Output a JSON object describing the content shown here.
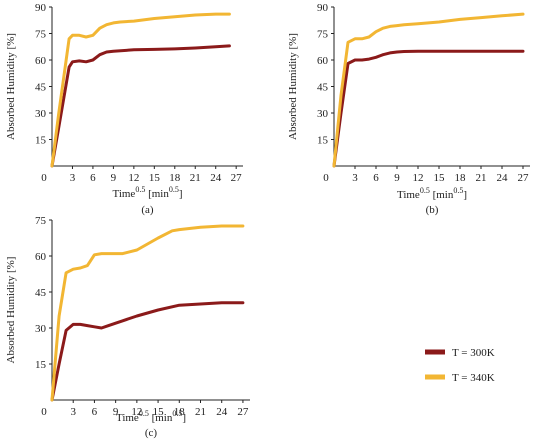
{
  "chart_data": [
    {
      "panel": "(a)",
      "type": "line",
      "xlabel": "Time",
      "xlabel_sup": "0.5",
      "xlabel_unit": "[min",
      "xlabel_unit_sup": "0.5",
      "xlabel_close": "]",
      "ylabel": "Absorbed Humidity [%]",
      "xlim": [
        0,
        28
      ],
      "ylim": [
        0,
        90
      ],
      "xticks": [
        0,
        3,
        6,
        9,
        12,
        15,
        18,
        21,
        24,
        27
      ],
      "yticks": [
        15,
        30,
        45,
        60,
        75,
        90
      ],
      "series": [
        {
          "name": "T = 300K",
          "color": "#8b1a1a",
          "x": [
            0,
            1,
            2.5,
            3,
            4,
            5,
            6,
            7,
            8,
            9,
            12,
            15,
            18,
            21,
            24,
            26
          ],
          "y": [
            0,
            22,
            56,
            59,
            59.5,
            59,
            60,
            63,
            64.5,
            65,
            65.8,
            66,
            66.3,
            66.8,
            67.5,
            68
          ]
        },
        {
          "name": "T = 340K",
          "color": "#f2b633",
          "x": [
            0,
            1,
            2.5,
            3,
            4,
            5,
            6,
            7,
            8,
            9,
            10,
            12,
            15,
            18,
            21,
            24,
            26
          ],
          "y": [
            0,
            30,
            72,
            74,
            74,
            73,
            74,
            78,
            80,
            81,
            81.5,
            82,
            83.5,
            84.5,
            85.5,
            86,
            86
          ]
        }
      ]
    },
    {
      "panel": "(b)",
      "type": "line",
      "xlabel": "Time",
      "xlabel_sup": "0.5",
      "xlabel_unit": "[min",
      "xlabel_unit_sup": "0.5",
      "xlabel_close": "]",
      "ylabel": "Absorbed Humidity [%]",
      "xlim": [
        0,
        28
      ],
      "ylim": [
        0,
        90
      ],
      "xticks": [
        0,
        3,
        6,
        9,
        12,
        15,
        18,
        21,
        24,
        27
      ],
      "yticks": [
        15,
        30,
        45,
        60,
        75,
        90
      ],
      "series": [
        {
          "name": "T = 300K",
          "color": "#8b1a1a",
          "x": [
            0,
            1,
            2,
            3,
            4,
            5,
            6,
            7,
            8,
            9,
            10,
            12,
            15,
            18,
            21,
            24,
            27
          ],
          "y": [
            0,
            30,
            58,
            60,
            60,
            60.5,
            61.5,
            63,
            64,
            64.5,
            64.8,
            65,
            65,
            65,
            65,
            65,
            65
          ]
        },
        {
          "name": "T = 340K",
          "color": "#f2b633",
          "x": [
            0,
            1,
            2,
            3,
            4,
            5,
            6,
            7,
            8,
            9,
            10,
            12,
            15,
            18,
            21,
            24,
            27
          ],
          "y": [
            0,
            40,
            70,
            72,
            72,
            73,
            76,
            78,
            79,
            79.5,
            80,
            80.5,
            81.5,
            83,
            84,
            85,
            86
          ]
        }
      ]
    },
    {
      "panel": "(c)",
      "type": "line",
      "xlabel": "Time",
      "xlabel_sup": "0.5",
      "xlabel_unit": "[min",
      "xlabel_unit_sup": "0.5",
      "xlabel_close": "]",
      "ylabel": "Absorbed Humidity [%]",
      "xlim": [
        0,
        28
      ],
      "ylim": [
        0,
        75
      ],
      "xticks": [
        0,
        3,
        6,
        9,
        12,
        15,
        18,
        21,
        24,
        27
      ],
      "yticks": [
        15,
        30,
        45,
        60,
        75
      ],
      "series": [
        {
          "name": "T = 300K",
          "color": "#8b1a1a",
          "x": [
            0,
            1,
            2,
            3,
            4,
            5,
            6,
            7,
            8,
            9,
            10,
            12,
            15,
            18,
            21,
            24,
            27
          ],
          "y": [
            0,
            15,
            29,
            31.5,
            31.5,
            31,
            30.5,
            30,
            31,
            32,
            33,
            35,
            37.5,
            39.5,
            40,
            40.5,
            40.5
          ]
        },
        {
          "name": "T = 340K",
          "color": "#f2b633",
          "x": [
            0,
            1,
            2,
            3,
            4,
            5,
            6,
            7,
            8,
            9,
            10,
            12,
            15,
            17,
            18,
            21,
            24,
            27
          ],
          "y": [
            0,
            35,
            53,
            54.5,
            55,
            56,
            60.5,
            61,
            61,
            61,
            61,
            62.5,
            67.5,
            70.5,
            71,
            72,
            72.5,
            72.5
          ]
        }
      ]
    }
  ],
  "legend": [
    {
      "label": "T = 300K",
      "color": "#8b1a1a"
    },
    {
      "label": "T = 340K",
      "color": "#f2b633"
    }
  ]
}
